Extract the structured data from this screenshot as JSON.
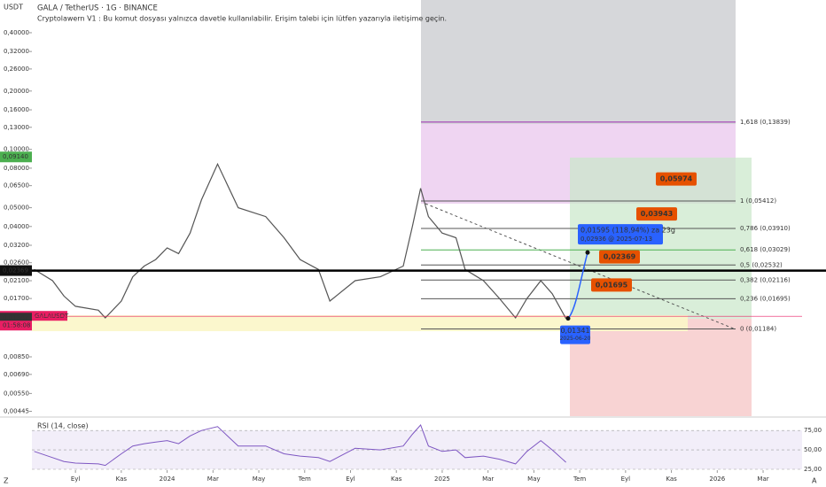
{
  "chart_data": {
    "type": "line",
    "title": "GALA / TetherUS · 1G · BINANCE",
    "subtitle": "Cryptolawern V1 : Bu komut dosyası yalnızca davetle kullanılabilir. Erişim talebi için lütfen yazarıyla iletişime geçin.",
    "y_unit": "USDT",
    "log_scale": true,
    "x": [
      0.2,
      1,
      1.5,
      2,
      3,
      3.3,
      4,
      4.5,
      5,
      5.5,
      6,
      6.5,
      7,
      7.5,
      8.2,
      9.1,
      10.3,
      11.1,
      11.8,
      12.6,
      13.1,
      14.2,
      15.3,
      16.3,
      16.7,
      17.06,
      17.4,
      18,
      18.6,
      19,
      19.8,
      20.5,
      21.2,
      21.7,
      22.3,
      22.8,
      23.4
    ],
    "xlim": [
      0.1,
      33.7
    ],
    "xticks": [
      {
        "value": 2,
        "label": "Eyl"
      },
      {
        "value": 4,
        "label": "Kas"
      },
      {
        "value": 6,
        "label": "2024"
      },
      {
        "value": 8,
        "label": "Mar"
      },
      {
        "value": 10,
        "label": "May"
      },
      {
        "value": 12,
        "label": "Tem"
      },
      {
        "value": 14,
        "label": "Eyl"
      },
      {
        "value": 16,
        "label": "Kas"
      },
      {
        "value": 18,
        "label": "2025"
      },
      {
        "value": 20,
        "label": "Mar"
      },
      {
        "value": 22,
        "label": "May"
      },
      {
        "value": 24,
        "label": "Tem"
      },
      {
        "value": 26,
        "label": "Eyl"
      },
      {
        "value": 28,
        "label": "Kas"
      },
      {
        "value": 30,
        "label": "2026"
      },
      {
        "value": 32,
        "label": "Mar"
      }
    ],
    "series": [
      {
        "name": "GALAUSDT",
        "color": "#555555",
        "values": [
          0.024,
          0.021,
          0.0175,
          0.0155,
          0.0148,
          0.0135,
          0.0165,
          0.022,
          0.025,
          0.027,
          0.031,
          0.029,
          0.037,
          0.055,
          0.084,
          0.05,
          0.045,
          0.035,
          0.027,
          0.024,
          0.0165,
          0.021,
          0.022,
          0.025,
          0.04,
          0.063,
          0.045,
          0.037,
          0.035,
          0.024,
          0.021,
          0.017,
          0.0135,
          0.017,
          0.021,
          0.018,
          0.0134
        ]
      }
    ],
    "ylim": [
      0.0042,
      0.59
    ],
    "yticks": [
      {
        "value": 0.4,
        "label": "0,40000"
      },
      {
        "value": 0.32,
        "label": "0,32000"
      },
      {
        "value": 0.26,
        "label": "0,26000"
      },
      {
        "value": 0.2,
        "label": "0,20000"
      },
      {
        "value": 0.16,
        "label": "0,16000"
      },
      {
        "value": 0.13,
        "label": "0,13000"
      },
      {
        "value": 0.1,
        "label": "0,10000"
      },
      {
        "value": 0.08,
        "label": "0,08000"
      },
      {
        "value": 0.065,
        "label": "0,06500"
      },
      {
        "value": 0.05,
        "label": "0,05000"
      },
      {
        "value": 0.04,
        "label": "0,04000"
      },
      {
        "value": 0.032,
        "label": "0,03200"
      },
      {
        "value": 0.026,
        "label": "0,02600"
      },
      {
        "value": 0.021,
        "label": "0,02100"
      },
      {
        "value": 0.017,
        "label": "0,01700"
      },
      {
        "value": 0.0085,
        "label": "0,00850"
      },
      {
        "value": 0.0069,
        "label": "0,00690"
      },
      {
        "value": 0.0055,
        "label": "0,00550"
      },
      {
        "value": 0.00445,
        "label": "0,00445"
      }
    ],
    "fib_levels": [
      {
        "label": "1,618 (0,13839)",
        "value": 0.13839,
        "color": "#9c27b0"
      },
      {
        "label": "1 (0,05412)",
        "value": 0.05412,
        "color": "#555555"
      },
      {
        "label": "0,786 (0,03910)",
        "value": 0.0391,
        "color": "#555555"
      },
      {
        "label": "0,618 (0,03029)",
        "value": 0.03029,
        "color": "#4caf50"
      },
      {
        "label": "0,5 (0,02532)",
        "value": 0.02532,
        "color": "#555555"
      },
      {
        "label": "0,382 (0,02116)",
        "value": 0.02116,
        "color": "#555555"
      },
      {
        "label": "0,236 (0,01695)",
        "value": 0.01695,
        "color": "#555555"
      },
      {
        "label": "0 (0,01184)",
        "value": 0.01184,
        "color": "#555555"
      }
    ],
    "targets": [
      {
        "label": "0,05974",
        "value": 0.05974
      },
      {
        "label": "0,03943",
        "value": 0.03943
      },
      {
        "label": "0,02369",
        "value": 0.02369
      },
      {
        "label": "0,01695",
        "value": 0.01695
      }
    ],
    "projection": {
      "start_label": "0,01341",
      "start_value": 0.01341,
      "start_date": "2025-06-20",
      "label": "0,01595 (118,94%) za 23g",
      "detail": "0,02936 @ 2025-07-13",
      "end_value": 0.02936
    },
    "price_tags": [
      {
        "label": "0,09140",
        "value": 0.0914,
        "color": "#4caf50"
      },
      {
        "label": "0,02369",
        "value": 0.02369,
        "color": "#111111"
      },
      {
        "label": "0,01376",
        "value": 0.01376,
        "color": "#e91e63"
      },
      {
        "label": "0,01347",
        "value": 0.01347,
        "color": "#333333"
      }
    ],
    "countdown": "01:58:08",
    "rsi": {
      "title": "RSI (14, close)",
      "color": "#7e57c2",
      "values": [
        48,
        40,
        35,
        33,
        32,
        30,
        45,
        55,
        58,
        60,
        62,
        58,
        68,
        75,
        80,
        55,
        55,
        45,
        42,
        40,
        35,
        52,
        50,
        55,
        70,
        82,
        55,
        48,
        50,
        40,
        42,
        38,
        32,
        48,
        62,
        50,
        34
      ],
      "ylim": [
        25,
        90
      ],
      "yticks": [
        {
          "value": 75,
          "label": "75,00"
        },
        {
          "value": 50,
          "label": "50,00"
        },
        {
          "value": 25,
          "label": "25,00"
        }
      ]
    },
    "corner_left": "Z",
    "corner_right": "A"
  }
}
